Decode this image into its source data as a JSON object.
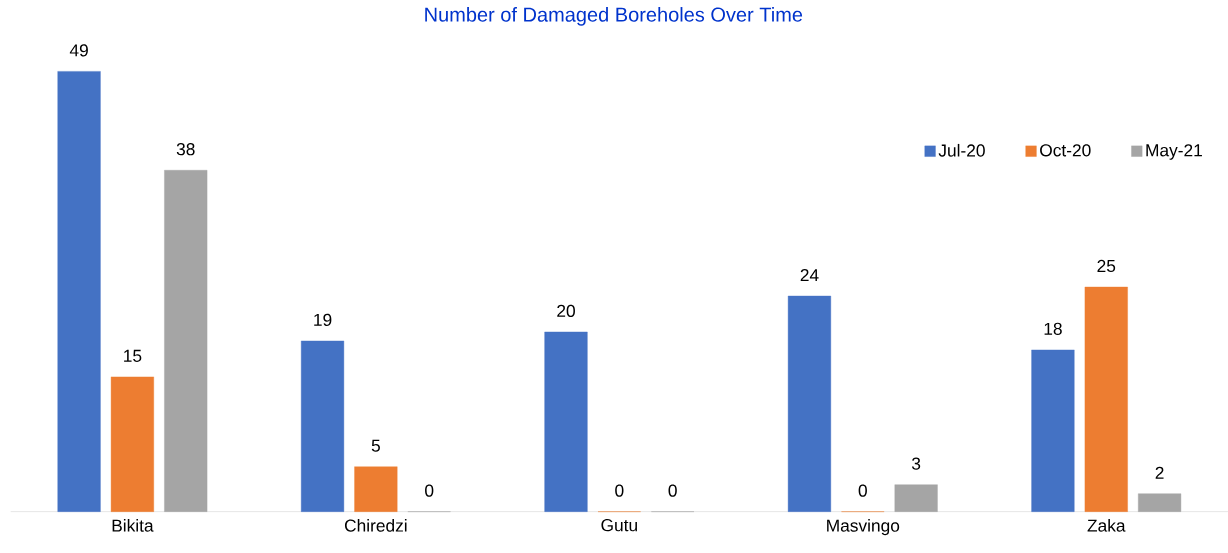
{
  "chart_data": {
    "type": "bar",
    "title": "Number of Damaged Boreholes Over Time",
    "categories": [
      "Bikita",
      "Chiredzi",
      "Gutu",
      "Masvingo",
      "Zaka"
    ],
    "series": [
      {
        "name": "Jul-20",
        "color": "#4472c4",
        "values": [
          49,
          19,
          20,
          24,
          18
        ],
        "value_labels": [
          "49",
          "19",
          "20",
          "24",
          "18"
        ]
      },
      {
        "name": "Oct-20",
        "color": "#ed7d31",
        "values": [
          15,
          5,
          0,
          0,
          25
        ],
        "value_labels": [
          "15",
          "5",
          "0",
          "0",
          "25"
        ]
      },
      {
        "name": "May-21",
        "color": "#a5a5a5",
        "values": [
          38,
          0,
          0,
          3,
          2
        ],
        "value_labels": [
          "38",
          "0",
          "0",
          "3",
          "2"
        ]
      }
    ],
    "legend": "top right",
    "grid": false
  }
}
